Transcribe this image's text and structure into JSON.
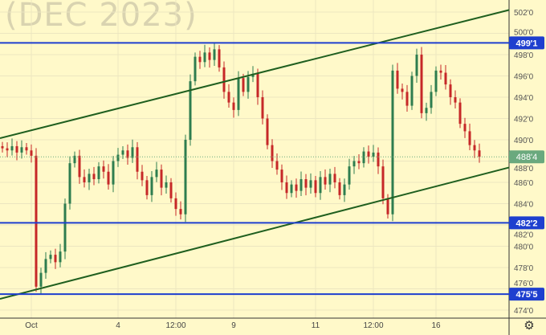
{
  "watermark": "(DEC 2023)",
  "chart_data": {
    "type": "candlestick",
    "ylim": [
      474,
      502.5
    ],
    "y_ticks": [
      474,
      476,
      478,
      480,
      482,
      484,
      486,
      488,
      490,
      492,
      494,
      496,
      498,
      500,
      502
    ],
    "y_tick_labels": [
      "474'0",
      "476'0",
      "478'0",
      "480'0",
      "482'0",
      "484'0",
      "486'0",
      "488'0",
      "490'0",
      "492'0",
      "494'0",
      "496'0",
      "498'0",
      "500'0",
      "502'0"
    ],
    "x_labels": [
      {
        "label": "Oct",
        "bar": 6
      },
      {
        "label": "4",
        "bar": 24
      },
      {
        "label": "12:00",
        "bar": 36
      },
      {
        "label": "9",
        "bar": 48
      },
      {
        "label": "11",
        "bar": 65
      },
      {
        "label": "12:00",
        "bar": 77
      },
      {
        "label": "16",
        "bar": 90
      }
    ],
    "closes": [
      489.2,
      489.0,
      489.4,
      488.8,
      489.3,
      489.0,
      488.5,
      476.2,
      477.5,
      478.8,
      479.2,
      478.5,
      479.5,
      484.0,
      487.8,
      488.5,
      486.5,
      486.0,
      486.8,
      486.3,
      487.5,
      487.0,
      485.8,
      488.0,
      488.6,
      489.0,
      488.3,
      489.3,
      487.0,
      486.2,
      484.8,
      486.5,
      487.2,
      485.5,
      486.0,
      484.5,
      483.5,
      483.0,
      490.0,
      495.5,
      497.8,
      497.3,
      498.2,
      497.5,
      498.5,
      496.8,
      494.5,
      493.5,
      492.8,
      495.8,
      494.5,
      495.9,
      496.2,
      494.0,
      492.0,
      489.5,
      488.0,
      487.2,
      486.0,
      485.0,
      485.8,
      485.2,
      486.3,
      485.5,
      486.2,
      485.0,
      486.5,
      485.8,
      486.8,
      486.0,
      484.8,
      485.8,
      487.5,
      488.0,
      487.8,
      488.9,
      488.4,
      488.8,
      487.5,
      484.5,
      483.0,
      496.5,
      494.8,
      494.5,
      493.2,
      496.0,
      498.0,
      492.5,
      493.0,
      494.5,
      496.5,
      496.3,
      495.2,
      494.0,
      493.5,
      491.5,
      490.8,
      489.5,
      489.0,
      488.4
    ],
    "horizontal_levels": [
      {
        "price": 499.1,
        "label": "499'1"
      },
      {
        "price": 482.2,
        "label": "482'2"
      },
      {
        "price": 475.5,
        "label": "475'5"
      }
    ],
    "last_price": {
      "price": 488.4,
      "label": "488'4"
    },
    "trend_lines": [
      {
        "from": {
          "bar": 0,
          "price": 490.15
        },
        "to": {
          "bar": 105.7,
          "price": 502.2
        }
      },
      {
        "from": {
          "bar": 0,
          "price": 475.05
        },
        "to": {
          "bar": 105.7,
          "price": 487.4
        }
      }
    ],
    "grid": true,
    "colors": {
      "up": "#2e7d4f",
      "down": "#c62828",
      "level": "#1e3fcf",
      "trend": "#1f5f1f",
      "last": "#6aa97e",
      "grid": "#ece6c0"
    }
  },
  "settings_icon": "gear-icon"
}
